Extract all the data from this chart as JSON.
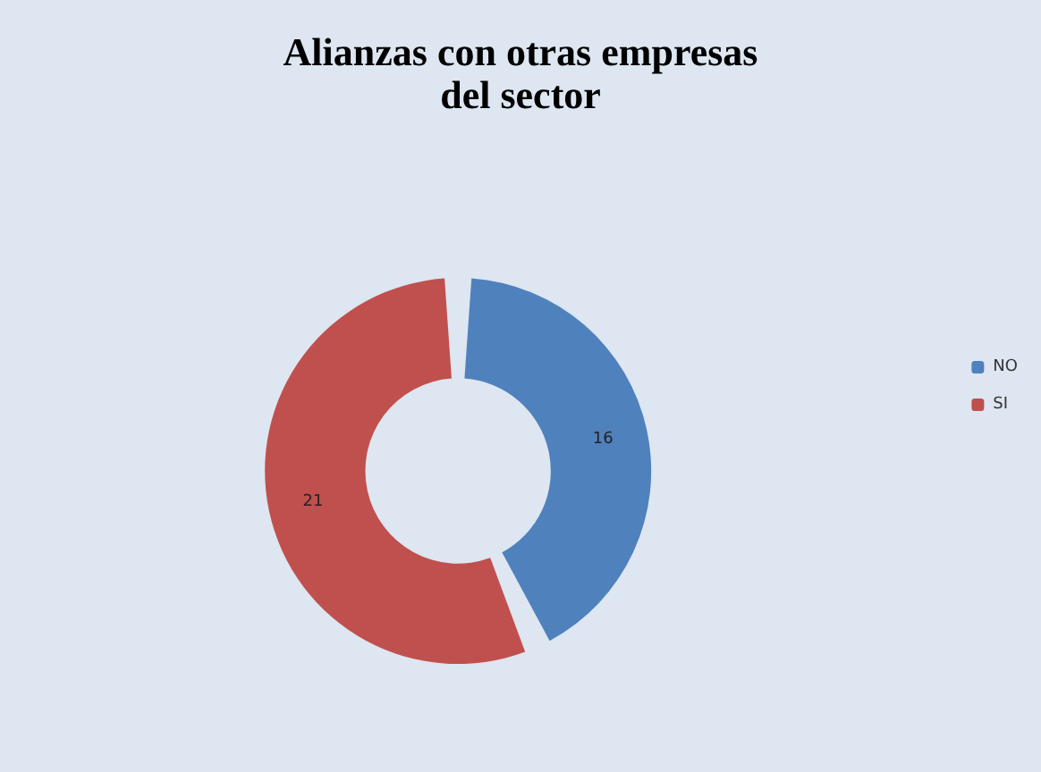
{
  "chart_data": {
    "type": "donut",
    "title": "Alianzas con otras empresas\ndel sector",
    "categories": [
      "NO",
      "SI"
    ],
    "values": [
      16,
      21
    ],
    "colors": [
      "#4f81bd",
      "#c0504d"
    ],
    "data_labels": true,
    "legend": "right"
  }
}
